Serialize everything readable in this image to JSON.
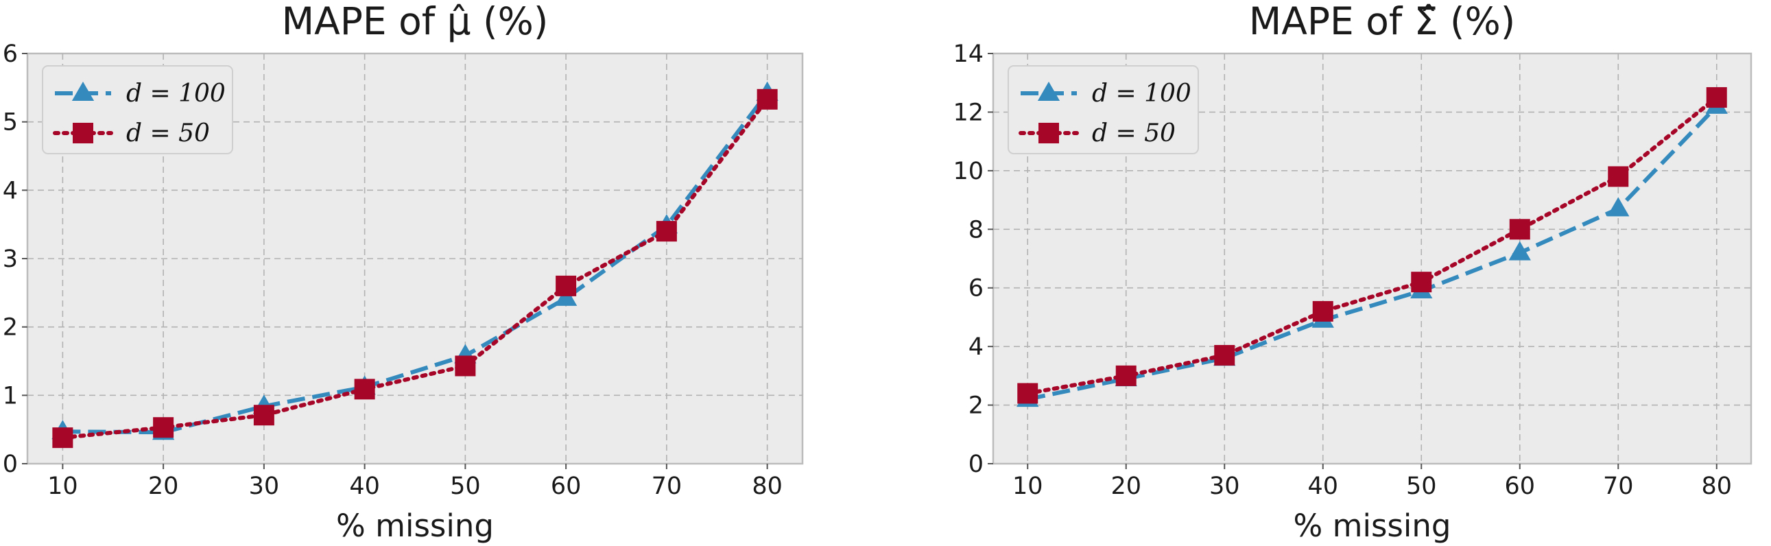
{
  "chart_data": [
    {
      "type": "line",
      "title": "MAPE of μ̂ (%)",
      "xlabel": "% missing",
      "ylabel": "",
      "x": [
        10,
        20,
        30,
        40,
        50,
        60,
        70,
        80
      ],
      "xlim": [
        6.5,
        83.5
      ],
      "ylim": [
        0,
        6
      ],
      "yticks": [
        0,
        1,
        2,
        3,
        4,
        5,
        6
      ],
      "grid": true,
      "legend_position": "top-left",
      "series": [
        {
          "name": "d = 100",
          "marker": "triangle",
          "style": "dashed",
          "color": "#348abd",
          "values": [
            0.47,
            0.46,
            0.84,
            1.12,
            1.58,
            2.42,
            3.48,
            5.42
          ]
        },
        {
          "name": "d = 50",
          "marker": "square",
          "style": "dotted",
          "color": "#a60628",
          "values": [
            0.38,
            0.53,
            0.71,
            1.09,
            1.43,
            2.6,
            3.4,
            5.33
          ]
        }
      ]
    },
    {
      "type": "line",
      "title": "MAPE of Σ̂ (%)",
      "xlabel": "% missing",
      "ylabel": "",
      "x": [
        10,
        20,
        30,
        40,
        50,
        60,
        70,
        80
      ],
      "xlim": [
        6.5,
        83.5
      ],
      "ylim": [
        0,
        14
      ],
      "yticks": [
        0,
        2,
        4,
        6,
        8,
        10,
        12,
        14
      ],
      "grid": true,
      "legend_position": "top-left",
      "series": [
        {
          "name": "d = 100",
          "marker": "triangle",
          "style": "dashed",
          "color": "#348abd",
          "values": [
            2.2,
            2.9,
            3.6,
            4.9,
            5.9,
            7.2,
            8.7,
            12.2
          ]
        },
        {
          "name": "d = 50",
          "marker": "square",
          "style": "dotted",
          "color": "#a60628",
          "values": [
            2.4,
            3.0,
            3.7,
            5.2,
            6.2,
            8.0,
            9.8,
            12.5
          ]
        }
      ]
    }
  ]
}
